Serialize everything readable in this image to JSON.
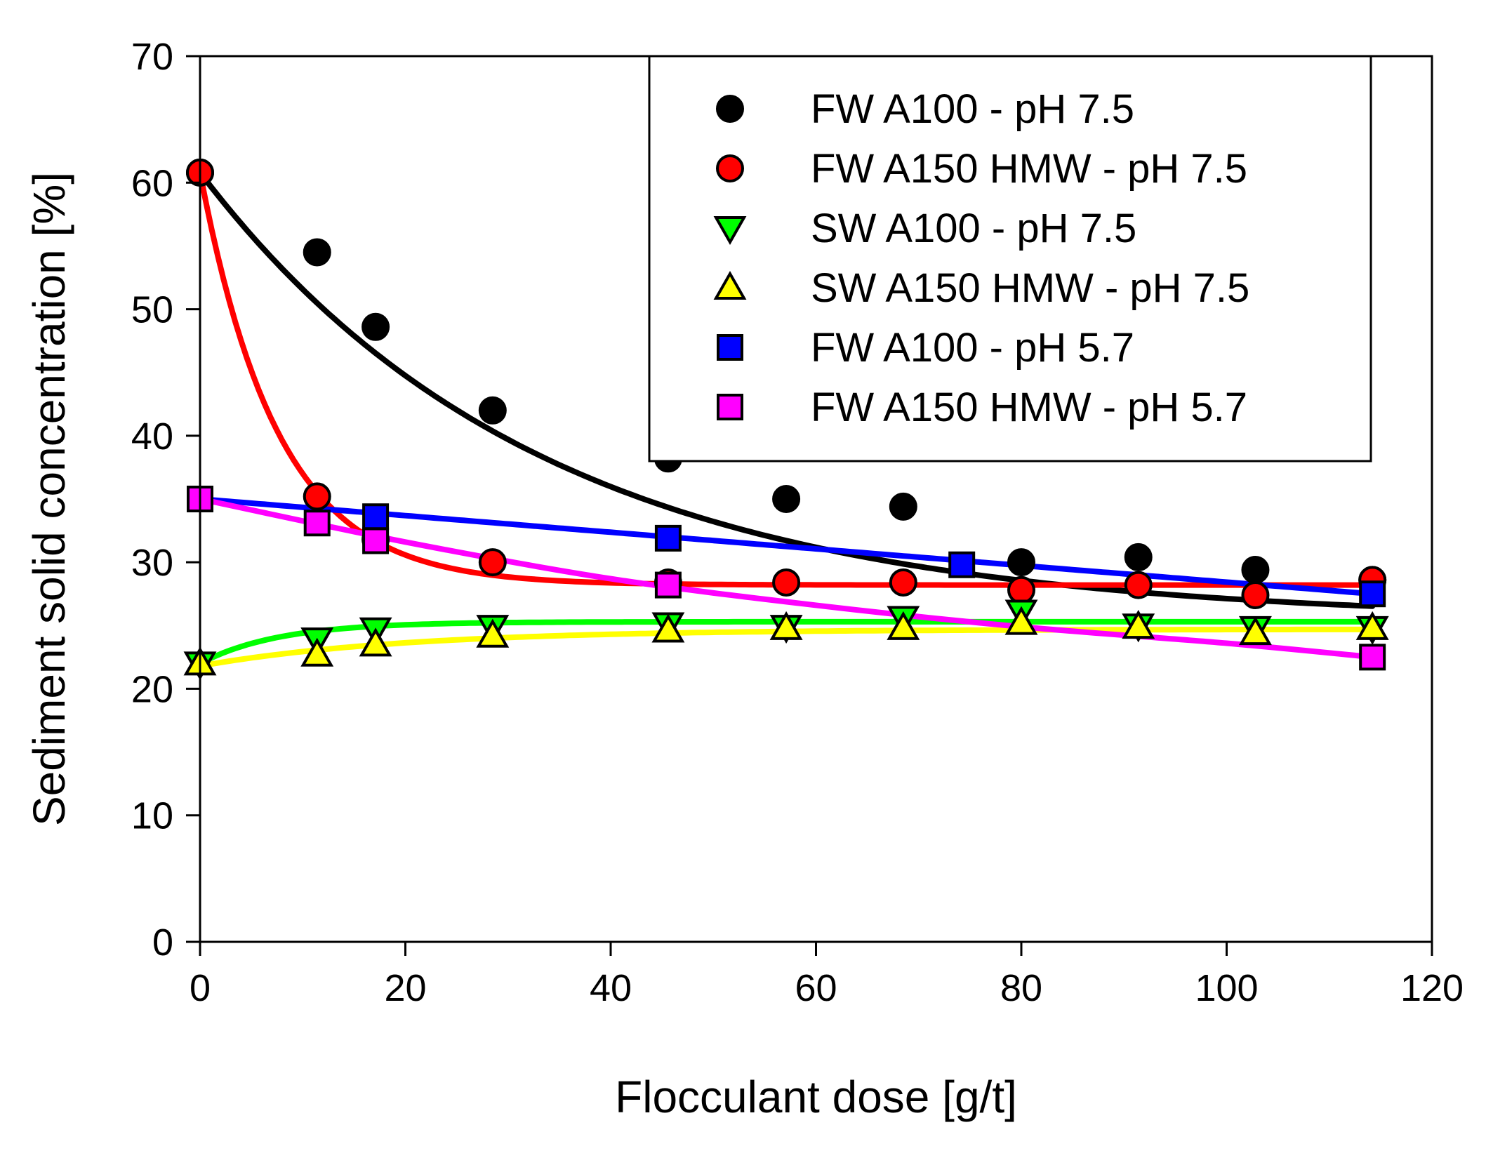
{
  "chart_data": {
    "type": "scatter",
    "title": "",
    "xlabel": "Flocculant dose [g/t]",
    "ylabel": "Sediment solid concentration [%]",
    "xlim": [
      0,
      120
    ],
    "ylim": [
      0,
      70
    ],
    "xticks": [
      0,
      20,
      40,
      60,
      80,
      100,
      120
    ],
    "yticks": [
      0,
      10,
      20,
      30,
      40,
      50,
      60,
      70
    ],
    "xtick_labels": [
      "0",
      "20",
      "40",
      "60",
      "80",
      "100",
      "120"
    ],
    "ytick_labels": [
      "0",
      "10",
      "20",
      "30",
      "40",
      "50",
      "60",
      "70"
    ],
    "grid": false,
    "legend_position": "top-right",
    "series": [
      {
        "name": "FW A100 - pH 7.5",
        "marker": "circle",
        "fill": "#000000",
        "line_color": "#000000",
        "x": [
          0,
          11.4,
          17.1,
          28.5,
          45.6,
          57.1,
          68.5,
          80,
          91.4,
          102.8,
          114.2
        ],
        "y": [
          60.8,
          54.5,
          48.6,
          42,
          38.2,
          35,
          34.4,
          30,
          30.4,
          29.4,
          28.6
        ],
        "fit": {
          "model": "exp_decay",
          "y0": 25.4,
          "A": 35.4,
          "k": 0.0302
        }
      },
      {
        "name": "FW A150 HMW - pH 7.5",
        "marker": "circle",
        "fill": "#ff0000",
        "line_color": "#ff0000",
        "x": [
          0,
          11.4,
          17.1,
          28.5,
          45.6,
          57.1,
          68.5,
          80,
          91.4,
          102.8,
          114.2
        ],
        "y": [
          60.8,
          35.2,
          31.8,
          30,
          28.4,
          28.4,
          28.4,
          27.8,
          28.2,
          27.4,
          28.6
        ],
        "fit": {
          "model": "exp_decay",
          "y0": 28.2,
          "A": 32.6,
          "k": 0.131
        }
      },
      {
        "name": "SW A100 - pH 7.5",
        "marker": "triangle-down",
        "fill": "#00ff00",
        "line_color": "#00ff00",
        "x": [
          0,
          11.4,
          17.1,
          28.5,
          45.6,
          57.1,
          68.5,
          80,
          91.4,
          102.8,
          114.2
        ],
        "y": [
          22,
          23.9,
          24.7,
          24.9,
          25.1,
          24.9,
          25.6,
          26.1,
          25,
          24.8,
          24.8
        ],
        "fit": {
          "model": "exp_rise",
          "y0": 25.3,
          "A": 3.3,
          "k": 0.13
        }
      },
      {
        "name": "SW A150 HMW - pH 7.5",
        "marker": "triangle-up",
        "fill": "#ffff00",
        "line_color": "#ffff00",
        "x": [
          0,
          11.4,
          17.1,
          28.5,
          45.6,
          57.1,
          68.5,
          80,
          91.4,
          102.8,
          114.2
        ],
        "y": [
          22,
          22.7,
          23.5,
          24.2,
          24.6,
          24.8,
          24.8,
          25.2,
          24.9,
          24.4,
          24.8
        ],
        "fit": {
          "model": "exp_rise",
          "y0": 24.7,
          "A": 2.9,
          "k": 0.05
        }
      },
      {
        "name": "FW A100 - pH 5.7",
        "marker": "square",
        "fill": "#0000ff",
        "line_color": "#0000ff",
        "x": [
          0,
          17.1,
          45.6,
          74.2,
          114.2
        ],
        "y": [
          35,
          33.6,
          31.9,
          29.8,
          27.5
        ],
        "fit": {
          "model": "linear",
          "intercept": 35,
          "slope": -0.0657
        }
      },
      {
        "name": "FW A150 HMW - pH 5.7",
        "marker": "square",
        "fill": "#ff00ff",
        "line_color": "#ff00ff",
        "x": [
          0,
          11.4,
          17.1,
          45.6,
          114.2
        ],
        "y": [
          35,
          33.1,
          31.7,
          28.2,
          22.5
        ],
        "fit": {
          "model": "polyline",
          "points": [
            [
              0,
              35
            ],
            [
              20,
              31.6
            ],
            [
              40,
              28.7
            ],
            [
              60,
              26.6
            ],
            [
              80,
              24.9
            ],
            [
              100,
              23.6
            ],
            [
              114.2,
              22.5
            ]
          ]
        }
      }
    ]
  }
}
